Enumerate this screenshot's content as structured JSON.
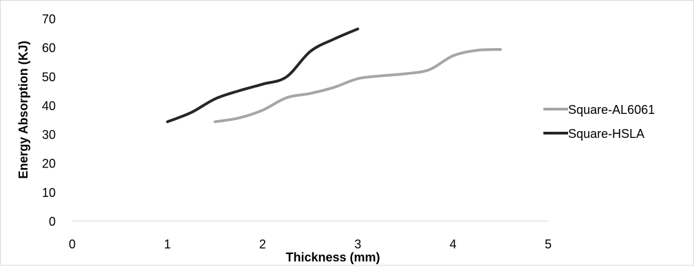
{
  "chart_data": {
    "type": "line",
    "title": "",
    "xlabel": "Thickness (mm)",
    "ylabel": "Energy Absorption (KJ)",
    "xlim": [
      0,
      5
    ],
    "ylim": [
      0,
      70
    ],
    "x_ticks": [
      0,
      1,
      2,
      3,
      4,
      5
    ],
    "y_ticks": [
      0,
      10,
      20,
      30,
      40,
      50,
      60,
      70
    ],
    "grid": false,
    "legend_position": "right",
    "series": [
      {
        "name": "Square-AL6061",
        "color": "#a6a6a6",
        "x": [
          1.5,
          1.75,
          2.0,
          2.25,
          2.5,
          2.75,
          3.0,
          3.25,
          3.5,
          3.75,
          4.0,
          4.25,
          4.5
        ],
        "y": [
          34.3,
          35.6,
          38.3,
          42.6,
          44.1,
          46.2,
          49.2,
          50.2,
          50.9,
          52.3,
          57.1,
          59.0,
          59.3
        ]
      },
      {
        "name": "Square-HSLA",
        "color": "#262626",
        "x": [
          1.0,
          1.25,
          1.5,
          1.75,
          2.0,
          2.25,
          2.5,
          2.75,
          3.0
        ],
        "y": [
          34.3,
          37.5,
          42.2,
          45.0,
          47.3,
          49.8,
          58.6,
          62.9,
          66.4
        ]
      }
    ]
  }
}
